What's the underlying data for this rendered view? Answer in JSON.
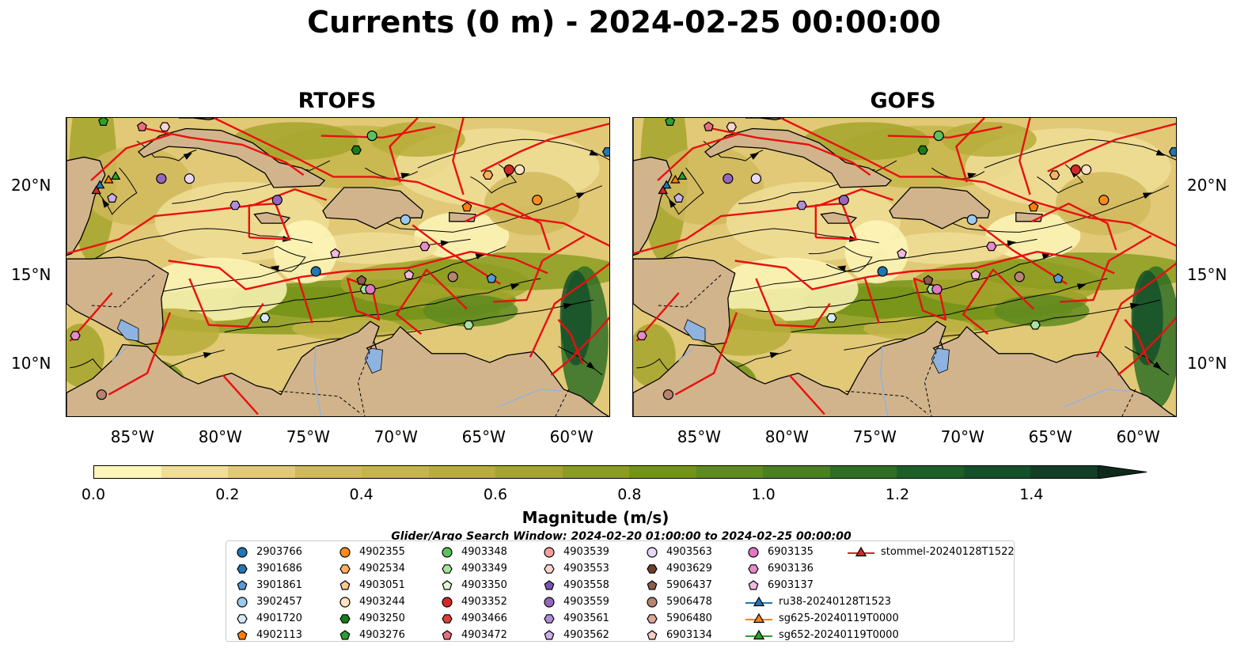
{
  "title": "Currents (0 m) - 2024-02-25 00:00:00",
  "panels": [
    {
      "title": "RTOFS"
    },
    {
      "title": "GOFS"
    }
  ],
  "axes": {
    "x_ticks": [
      "85°W",
      "80°W",
      "75°W",
      "70°W",
      "65°W",
      "60°W"
    ],
    "y_ticks": [
      "20°N",
      "15°N",
      "10°N"
    ],
    "x_range": [
      -89,
      -58
    ],
    "y_range": [
      7,
      23.8
    ]
  },
  "colorbar": {
    "label": "Magnitude (m/s)",
    "ticks": [
      "0.0",
      "0.2",
      "0.4",
      "0.6",
      "0.8",
      "1.0",
      "1.2",
      "1.4"
    ],
    "range": [
      0,
      1.5
    ],
    "extend": "max",
    "colors": [
      "#fdf6b8",
      "#f0de96",
      "#e1c977",
      "#d0b85c",
      "#c6b54a",
      "#b7ad3a",
      "#a4a52b",
      "#8b9d20",
      "#739318",
      "#5f8a1f",
      "#4a7f22",
      "#2f6e24",
      "#1c5f28",
      "#14502a",
      "#123f26",
      "#14311f"
    ]
  },
  "search_window": "Glider/Argo Search Window: 2024-02-20 01:00:00 to 2024-02-25 00:00:00",
  "legend": [
    {
      "label": "2903766",
      "marker": "circle",
      "color": "#1f77b4"
    },
    {
      "label": "3901686",
      "marker": "hexagon",
      "color": "#1f77b4"
    },
    {
      "label": "3901861",
      "marker": "pentagon",
      "color": "#5b9bd5"
    },
    {
      "label": "3902457",
      "marker": "circle",
      "color": "#9dc9ec"
    },
    {
      "label": "4901720",
      "marker": "hexagon",
      "color": "#d4ebfa"
    },
    {
      "label": "4902113",
      "marker": "pentagon",
      "color": "#ff7f0e"
    },
    {
      "label": "4902355",
      "marker": "circle",
      "color": "#ff8c1a"
    },
    {
      "label": "4902534",
      "marker": "hexagon",
      "color": "#ffb060"
    },
    {
      "label": "4903051",
      "marker": "pentagon",
      "color": "#ffc890"
    },
    {
      "label": "4903244",
      "marker": "circle",
      "color": "#ffe3c2"
    },
    {
      "label": "4903250",
      "marker": "hexagon",
      "color": "#1a7d1a"
    },
    {
      "label": "4903276",
      "marker": "pentagon",
      "color": "#2ca02c"
    },
    {
      "label": "4903348",
      "marker": "circle",
      "color": "#5cc15c"
    },
    {
      "label": "4903349",
      "marker": "hexagon",
      "color": "#a6e2a0"
    },
    {
      "label": "4903350",
      "marker": "pentagon",
      "color": "#dff5d8"
    },
    {
      "label": "4903352",
      "marker": "circle",
      "color": "#d62728"
    },
    {
      "label": "4903466",
      "marker": "hexagon",
      "color": "#d9413f"
    },
    {
      "label": "4903472",
      "marker": "pentagon",
      "color": "#e8707a"
    },
    {
      "label": "4903539",
      "marker": "circle",
      "color": "#f4a09b"
    },
    {
      "label": "4903553",
      "marker": "hexagon",
      "color": "#fdd5d0"
    },
    {
      "label": "4903558",
      "marker": "pentagon",
      "color": "#7b55b3"
    },
    {
      "label": "4903559",
      "marker": "circle",
      "color": "#9467bd"
    },
    {
      "label": "4903561",
      "marker": "hexagon",
      "color": "#b08ed8"
    },
    {
      "label": "4903562",
      "marker": "pentagon",
      "color": "#c9b0e8"
    },
    {
      "label": "4903563",
      "marker": "circle",
      "color": "#e8d8f8"
    },
    {
      "label": "4903629",
      "marker": "hexagon",
      "color": "#6b3f2a"
    },
    {
      "label": "5906437",
      "marker": "pentagon",
      "color": "#8c5e4b"
    },
    {
      "label": "5906478",
      "marker": "circle",
      "color": "#b88472"
    },
    {
      "label": "5906480",
      "marker": "hexagon",
      "color": "#dba99a"
    },
    {
      "label": "6903134",
      "marker": "pentagon",
      "color": "#f4cfc2"
    },
    {
      "label": "6903135",
      "marker": "circle",
      "color": "#e377c2"
    },
    {
      "label": "6903136",
      "marker": "hexagon",
      "color": "#e88acb"
    },
    {
      "label": "6903137",
      "marker": "pentagon",
      "color": "#f3b8e0"
    },
    {
      "label": "ru38-20240128T1523",
      "marker": "triangle-line",
      "color": "#1f77b4"
    },
    {
      "label": "sg625-20240119T0000",
      "marker": "triangle-line",
      "color": "#ff7f0e"
    },
    {
      "label": "sg652-20240119T0000",
      "marker": "triangle-line",
      "color": "#2ca02c"
    },
    {
      "label": "stommel-20240128T1522",
      "marker": "triangle-line",
      "color": "#d62728"
    }
  ],
  "map_markers": [
    {
      "id": "4903276",
      "lon": -86.9,
      "lat": 23.6
    },
    {
      "id": "4903472",
      "lon": -84.7,
      "lat": 23.3
    },
    {
      "id": "4903553",
      "lon": -83.4,
      "lat": 23.3
    },
    {
      "id": "ru38-20240128T1523",
      "lon": -87.1,
      "lat": 20.0
    },
    {
      "id": "sg625-20240119T0000",
      "lon": -86.6,
      "lat": 20.3
    },
    {
      "id": "sg652-20240119T0000",
      "lon": -86.2,
      "lat": 20.5
    },
    {
      "id": "stommel-20240128T1522",
      "lon": -87.3,
      "lat": 19.7
    },
    {
      "id": "4903562",
      "lon": -86.4,
      "lat": 19.3
    },
    {
      "id": "4903559",
      "lon": -83.6,
      "lat": 20.4
    },
    {
      "id": "4903563",
      "lon": -82.0,
      "lat": 20.4
    },
    {
      "id": "4903561",
      "lon": -79.4,
      "lat": 18.9
    },
    {
      "id": "4903559",
      "lon": -77.0,
      "lat": 19.2
    },
    {
      "id": "4903250",
      "lon": -72.5,
      "lat": 22.0
    },
    {
      "id": "4903348",
      "lon": -71.6,
      "lat": 22.8
    },
    {
      "id": "3902457",
      "lon": -69.7,
      "lat": 18.1
    },
    {
      "id": "4902534",
      "lon": -65.0,
      "lat": 20.6
    },
    {
      "id": "4903352",
      "lon": -63.8,
      "lat": 20.9
    },
    {
      "id": "4903244",
      "lon": -63.2,
      "lat": 20.9
    },
    {
      "id": "4902355",
      "lon": -62.2,
      "lat": 19.2
    },
    {
      "id": "4902113",
      "lon": -66.2,
      "lat": 18.8
    },
    {
      "id": "6903137",
      "lon": -73.7,
      "lat": 16.2
    },
    {
      "id": "6903136",
      "lon": -68.6,
      "lat": 16.6
    },
    {
      "id": "2903766",
      "lon": -74.8,
      "lat": 15.2
    },
    {
      "id": "5906437",
      "lon": -72.2,
      "lat": 14.7
    },
    {
      "id": "4903349",
      "lon": -72.0,
      "lat": 14.2
    },
    {
      "id": "6903135",
      "lon": -71.7,
      "lat": 14.2
    },
    {
      "id": "6903137",
      "lon": -69.5,
      "lat": 15.0
    },
    {
      "id": "5906478",
      "lon": -67.0,
      "lat": 14.9
    },
    {
      "id": "3901861",
      "lon": -64.8,
      "lat": 14.8
    },
    {
      "id": "4901720",
      "lon": -77.7,
      "lat": 12.6
    },
    {
      "id": "4903349",
      "lon": -66.1,
      "lat": 12.2
    },
    {
      "id": "6903136",
      "lon": -88.5,
      "lat": 11.6
    },
    {
      "id": "5906478",
      "lon": -87.0,
      "lat": 8.3
    },
    {
      "id": "3901686",
      "lon": -58.2,
      "lat": 21.9
    }
  ]
}
